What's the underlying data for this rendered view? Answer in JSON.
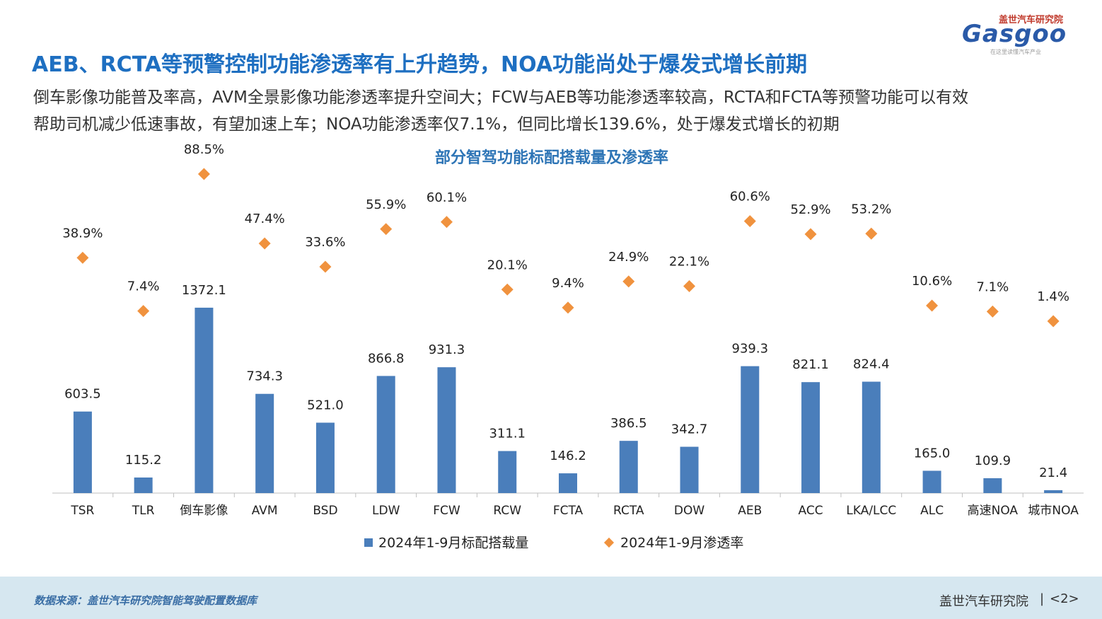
{
  "header": {
    "title": "AEB、RCTA等预警控制功能渗透率有上升趋势，NOA功能尚处于爆发式增长前期",
    "subtitle": [
      "倒车影像功能普及率高，AVM全景影像功能渗透率提升空间大；FCW与AEB等功能渗透率较高，RCTA和FCTA等预警功能可以有效",
      "帮助司机减少低速事故，有望加速上车；NOA功能渗透率仅7.1%，但同比增长139.6%，处于爆发式增长的初期"
    ]
  },
  "logo": {
    "name": "盖世汽车研究院",
    "wordmark": "Gasgoo",
    "tagline": "在这里读懂汽车产业"
  },
  "chart_data": {
    "type": "bar",
    "title": "部分智驾功能标配搭载量及渗透率",
    "categories": [
      "TSR",
      "TLR",
      "倒车影像",
      "AVM",
      "BSD",
      "LDW",
      "FCW",
      "RCW",
      "FCTA",
      "RCTA",
      "DOW",
      "AEB",
      "ACC",
      "LKA/LCC",
      "ALC",
      "高速NOA",
      "城市NOA"
    ],
    "ylim": [
      0,
      1500
    ],
    "y2lim": [
      0,
      100
    ],
    "series": [
      {
        "name": "2024年1-9月标配搭载量",
        "color": "#4a7ebb",
        "values": [
          603.5,
          115.2,
          1372.1,
          734.3,
          521.0,
          866.8,
          931.3,
          311.1,
          146.2,
          386.5,
          342.7,
          939.3,
          821.1,
          824.4,
          165.0,
          109.9,
          21.4
        ],
        "value_labels": [
          "603.5",
          "115.2",
          "1372.1",
          "734.3",
          "521.0",
          "866.8",
          "931.3",
          "311.1",
          "146.2",
          "386.5",
          "342.7",
          "939.3",
          "821.1",
          "824.4",
          "165.0",
          "109.9",
          "21.4"
        ]
      },
      {
        "name": "2024年1-9月渗透率",
        "type": "scatter",
        "axis": "y2",
        "color": "#f0923e",
        "values": [
          38.9,
          7.4,
          88.5,
          47.4,
          33.6,
          55.9,
          60.1,
          20.1,
          9.4,
          24.9,
          22.1,
          60.6,
          52.9,
          53.2,
          10.6,
          7.1,
          1.4
        ],
        "value_labels": [
          "38.9%",
          "7.4%",
          "88.5%",
          "47.4%",
          "33.6%",
          "55.9%",
          "60.1%",
          "20.1%",
          "9.4%",
          "24.9%",
          "22.1%",
          "60.6%",
          "52.9%",
          "53.2%",
          "10.6%",
          "7.1%",
          "1.4%"
        ]
      }
    ]
  },
  "footer": {
    "source": "数据来源：盖世汽车研究院智能驾驶配置数据库",
    "brand": "盖世汽车研究院",
    "page": "<2>"
  }
}
